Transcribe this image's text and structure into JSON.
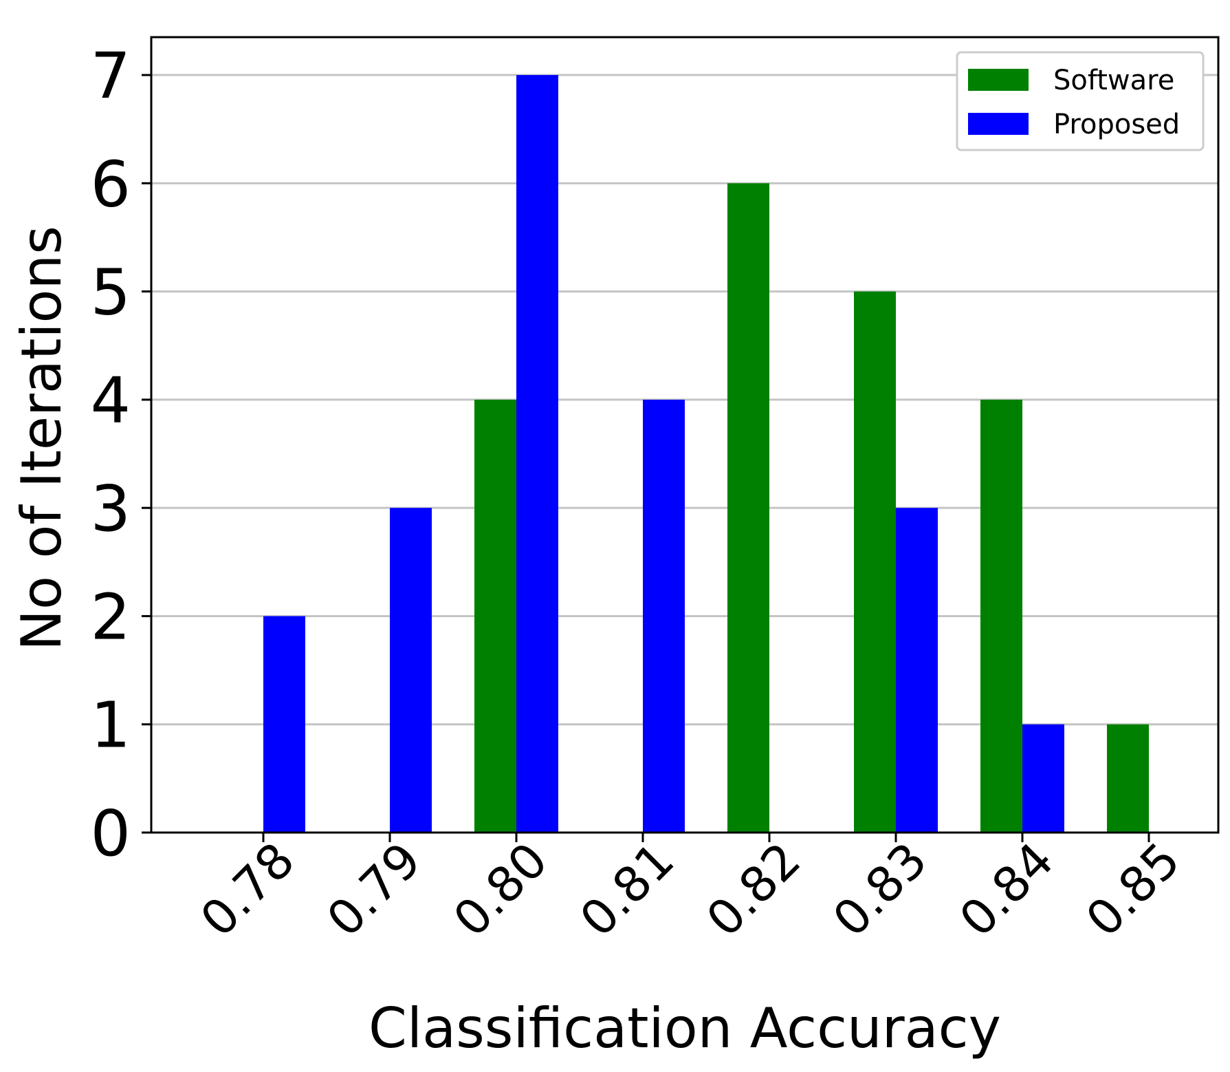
{
  "chart_data": {
    "type": "bar",
    "categories": [
      "0.78",
      "0.79",
      "0.80",
      "0.81",
      "0.82",
      "0.83",
      "0.84",
      "0.85"
    ],
    "series": [
      {
        "name": "Software",
        "color": "#008000",
        "values": [
          0,
          0,
          4,
          0,
          6,
          5,
          4,
          1
        ]
      },
      {
        "name": "Proposed",
        "color": "#0000ff",
        "values": [
          2,
          3,
          7,
          4,
          0,
          3,
          1,
          0
        ]
      }
    ],
    "title": "",
    "xlabel": "Classification Accuracy",
    "ylabel": "No of Iterations",
    "ylim": [
      0,
      7.35
    ],
    "yticks": [
      "0",
      "1",
      "2",
      "3",
      "4",
      "5",
      "6",
      "7"
    ],
    "grid": "horizontal",
    "legend": "top-right"
  }
}
